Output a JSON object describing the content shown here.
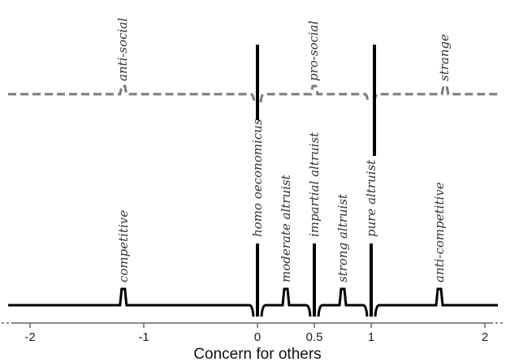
{
  "axis": {
    "title": "Concern for others",
    "ticks": [
      {
        "value": -2,
        "label": "-2"
      },
      {
        "value": -1,
        "label": "-1"
      },
      {
        "value": 0,
        "label": "0"
      },
      {
        "value": 0.5,
        "label": "0.5"
      },
      {
        "value": 1,
        "label": "1"
      },
      {
        "value": 2,
        "label": "2"
      }
    ],
    "range": [
      -2.2,
      2.2
    ]
  },
  "top_line": {
    "style": "dashed",
    "color": "#7a7a7a",
    "labels": [
      {
        "value": -1.18,
        "text": "anti-social"
      },
      {
        "value": 0.5,
        "text": "pro-social"
      },
      {
        "value": 1.65,
        "text": "strange"
      }
    ],
    "spikes": [
      {
        "value": 0,
        "kind": "boundary"
      },
      {
        "value": 1,
        "kind": "boundary"
      }
    ]
  },
  "bottom_line": {
    "style": "solid",
    "color": "#000000",
    "labels": [
      {
        "value": -1.18,
        "text": "competitive"
      },
      {
        "value": 0,
        "text": "homo oeconomicus"
      },
      {
        "value": 0.25,
        "text": "moderate altruist"
      },
      {
        "value": 0.5,
        "text": "impartial altruist"
      },
      {
        "value": 0.75,
        "text": "strong altruist"
      },
      {
        "value": 1,
        "text": "pure altruist"
      },
      {
        "value": 1.6,
        "text": "anti-competitive"
      }
    ],
    "spikes": [
      {
        "value": 0,
        "kind": "boundary"
      },
      {
        "value": 0.5,
        "kind": "boundary"
      },
      {
        "value": 1,
        "kind": "boundary"
      }
    ]
  }
}
